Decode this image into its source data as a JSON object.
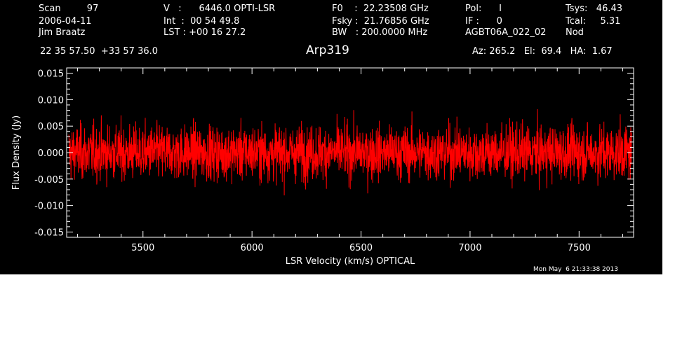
{
  "header": {
    "col1": [
      "Scan         97",
      "2006-04-11",
      "Jim Braatz"
    ],
    "col2": [
      "V   :      6446.0 OPTI-LSR",
      "Int  :  00 54 49.8",
      "LST : +00 16 27.2"
    ],
    "col3": [
      "F0    :  22.23508 GHz",
      "Fsky :  21.76856 GHz",
      "BW   : 200.0000 MHz"
    ],
    "col4": [
      "Pol:      I",
      "IF :      0",
      "AGBT06A_022_02"
    ],
    "col5": [
      "Tsys:   46.43",
      "Tcal:     5.31",
      "Nod"
    ],
    "coords": "22 35 57.50  +33 57 36.0",
    "source": "Arp319",
    "azelha": "Az: 265.2   El:  69.4   HA:  1.67",
    "timestamp": "Mon May  6 21:33:38 2013"
  },
  "colors": {
    "background": "#000000",
    "axes": "#ffffff",
    "trace": "#ff0000"
  },
  "chart_data": {
    "type": "line",
    "title": "Arp319",
    "xlabel": "LSR Velocity (km/s) OPTICAL",
    "ylabel": "Flux Density (Jy)",
    "xlim": [
      5150,
      7750
    ],
    "ylim": [
      -0.016,
      0.016
    ],
    "xticks": [
      5500,
      6000,
      6500,
      7000,
      7500
    ],
    "xtick_labels": [
      "5500",
      "6000",
      "6500",
      "7000",
      "7500"
    ],
    "yticks": [
      0.015,
      0.01,
      0.005,
      0.0,
      -0.005,
      -0.01,
      -0.015
    ],
    "ytick_labels": [
      "0.015",
      "0.010",
      "0.005",
      "0.000",
      "-0.005",
      "-0.010",
      "-0.015"
    ],
    "series": [
      {
        "x_start": 5160,
        "x_end": 7740,
        "noise_rms": 0.003,
        "mean": 0.0,
        "approx_max": 0.0105,
        "approx_min": -0.011
      }
    ]
  }
}
